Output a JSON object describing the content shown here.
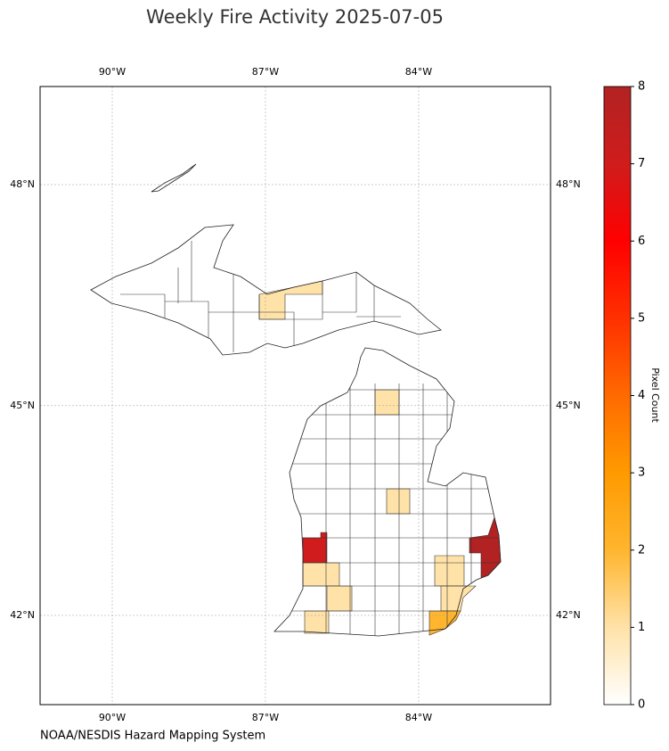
{
  "map": {
    "title": "Weekly Fire Activity 2025-07-05",
    "source": "NOAA/NESDIS Hazard Mapping System",
    "lon_ticks": [
      {
        "value": -90,
        "label": "90°W"
      },
      {
        "value": -87,
        "label": "87°W"
      },
      {
        "value": -84,
        "label": "84°W"
      }
    ],
    "lat_ticks": [
      {
        "value": 48,
        "label": "48°N"
      },
      {
        "value": 45,
        "label": "45°N"
      },
      {
        "value": 42,
        "label": "42°N"
      }
    ],
    "colorbar": {
      "label": "Pixel Count",
      "lim": [
        0,
        8
      ],
      "ticks": [
        0,
        1,
        2,
        3,
        4,
        5,
        6,
        7,
        8
      ],
      "colors": [
        "#ffffff",
        "#ffe2a8",
        "#ffb52e",
        "#ff9a00",
        "#ff6a00",
        "#ff3000",
        "#ff0000",
        "#d01c1c",
        "#b22222"
      ]
    },
    "county_values": [
      1,
      1,
      1,
      7,
      8,
      1,
      1,
      1,
      1,
      1,
      2
    ],
    "grid": true
  }
}
